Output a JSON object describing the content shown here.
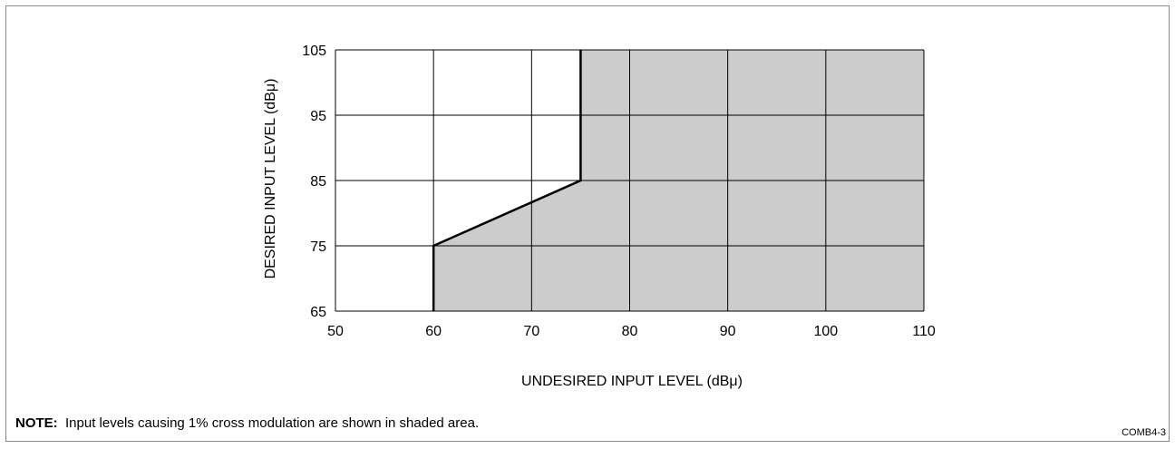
{
  "chart_data": {
    "type": "area",
    "xlabel": "UNDESIRED INPUT LEVEL (dBμ)",
    "ylabel": "DESIRED INPUT LEVEL (dBμ)",
    "xlim": [
      50,
      110
    ],
    "ylim": [
      65,
      105
    ],
    "xticks": [
      50,
      60,
      70,
      80,
      90,
      100,
      110
    ],
    "yticks": [
      65,
      75,
      85,
      95,
      105
    ],
    "grid": true,
    "boundary": {
      "x": [
        60,
        60,
        75,
        75
      ],
      "y": [
        65,
        75,
        85,
        105
      ]
    },
    "shaded_side": "right",
    "shade_color": "#cccccc"
  },
  "note": {
    "label": "NOTE:",
    "text": "Input levels causing 1% cross modulation are shown in shaded area."
  },
  "figure_code": "COMB4-3"
}
